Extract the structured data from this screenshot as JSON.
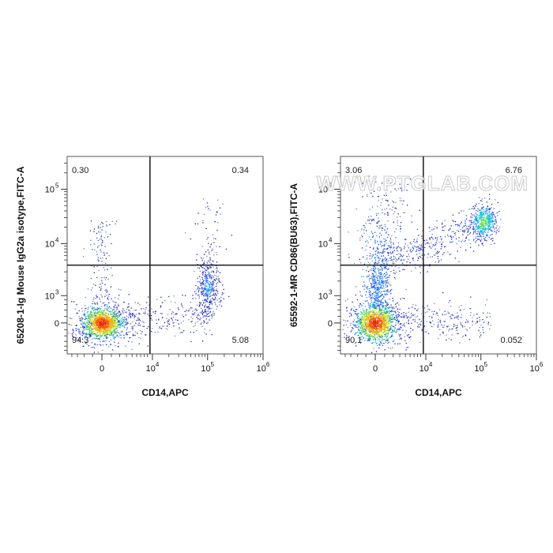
{
  "watermark": "WWW.PTGLAB.COM",
  "colors": {
    "gate": "#1a1a1a",
    "frame": "#555555",
    "density_low": "#1b1bd8",
    "density_high": "#ff1a00"
  },
  "chart_data": [
    {
      "type": "scatter",
      "subtype": "flow-cytometry-density",
      "xlabel": "CD14,APC",
      "ylabel": "65208-1-Ig Mouse IgG2a isotype,FITC-A",
      "x_scale": "biexponential",
      "y_scale": "biexponential",
      "x_ticks": [
        {
          "label": "0",
          "exp": ""
        },
        {
          "label": "10",
          "exp": "4"
        },
        {
          "label": "10",
          "exp": "5"
        },
        {
          "label": "10",
          "exp": "6"
        }
      ],
      "y_ticks": [
        {
          "label": "0",
          "exp": ""
        },
        {
          "label": "10",
          "exp": "3"
        },
        {
          "label": "10",
          "exp": "4"
        },
        {
          "label": "10",
          "exp": "5"
        }
      ],
      "quadrant_gate": {
        "x": 9000,
        "y": 4000
      },
      "quadrants": {
        "upper_left": "0.30",
        "upper_right": "0.34",
        "lower_left": "94.3",
        "lower_right": "5.08"
      },
      "populations": [
        {
          "x_center": 0,
          "y_center": 0,
          "description": "double negative"
        },
        {
          "x_center": 100000,
          "y_center": 1500,
          "description": "CD14+"
        }
      ]
    },
    {
      "type": "scatter",
      "subtype": "flow-cytometry-density",
      "xlabel": "CD14,APC",
      "ylabel": "65592-1-MR CD86(BU63),FITC-A",
      "x_scale": "biexponential",
      "y_scale": "biexponential",
      "x_ticks": [
        {
          "label": "0",
          "exp": ""
        },
        {
          "label": "10",
          "exp": "4"
        },
        {
          "label": "10",
          "exp": "5"
        },
        {
          "label": "10",
          "exp": "6"
        }
      ],
      "y_ticks": [
        {
          "label": "0",
          "exp": ""
        },
        {
          "label": "10",
          "exp": "3"
        },
        {
          "label": "10",
          "exp": "4"
        },
        {
          "label": "10",
          "exp": "5"
        }
      ],
      "quadrant_gate": {
        "x": 9000,
        "y": 4000
      },
      "quadrants": {
        "upper_left": "3.06",
        "upper_right": "6.76",
        "lower_left": "90.1",
        "lower_right": "0.052"
      },
      "populations": [
        {
          "x_center": 0,
          "y_center": 0,
          "description": "double negative"
        },
        {
          "x_center": 110000,
          "y_center": 25000,
          "description": "CD14+ CD86+"
        }
      ]
    }
  ]
}
